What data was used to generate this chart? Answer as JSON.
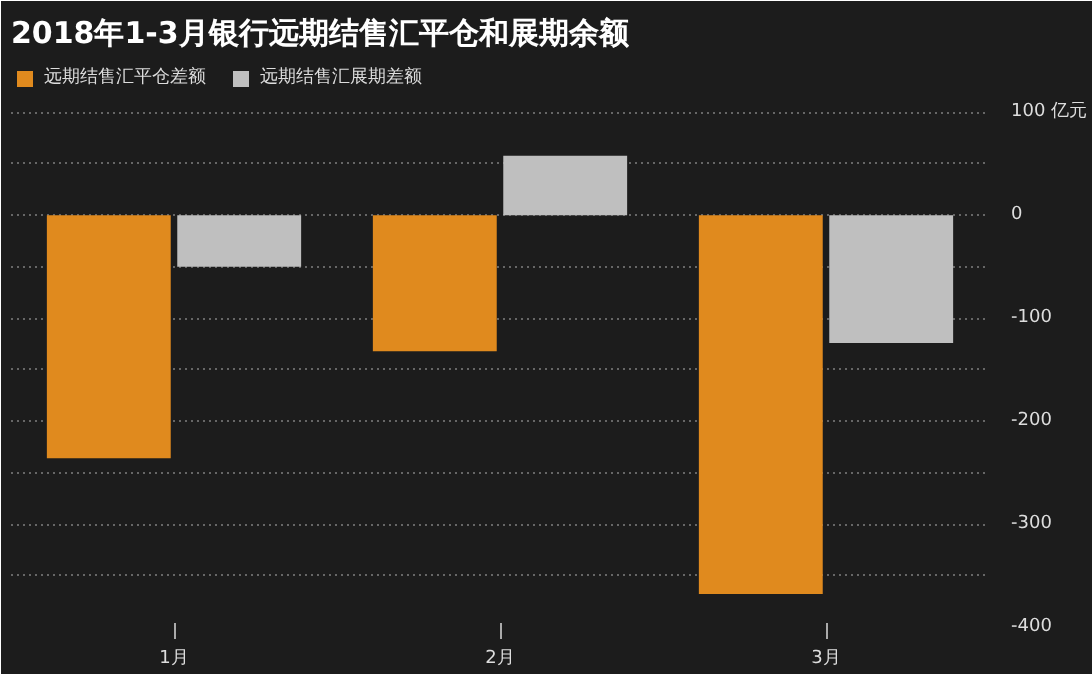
{
  "chart_data": {
    "type": "bar",
    "title": "2018年1-3月银行远期结售汇平仓和展期余额",
    "categories": [
      "1月",
      "2月",
      "3月"
    ],
    "series": [
      {
        "name": "远期结售汇平仓差额",
        "color": "#e08a1e",
        "values": [
          -236,
          -132,
          -368
        ]
      },
      {
        "name": "远期结售汇展期差额",
        "color": "#bfbfbf",
        "values": [
          -50,
          58,
          -124
        ]
      }
    ],
    "ylim": [
      -400,
      150
    ],
    "yticks": [
      {
        "value": 100,
        "label": "100 亿元"
      },
      {
        "value": 50,
        "label": null
      },
      0,
      {
        "value": -50,
        "label": null
      },
      -100,
      {
        "value": -150,
        "label": null
      },
      -200,
      {
        "value": -250,
        "label": null
      },
      -300,
      {
        "value": -350,
        "label": null
      },
      -400
    ],
    "grid": "y",
    "legend": "top left"
  }
}
